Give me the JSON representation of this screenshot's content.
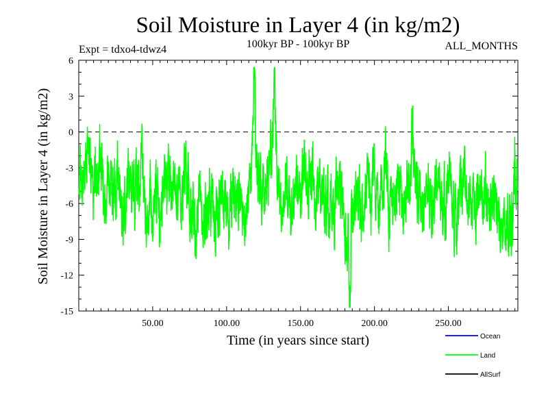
{
  "chart_data": {
    "type": "line",
    "title": "Soil Moisture in Layer 4 (in kg/m2)",
    "subtitle_left": "Expt = tdxo4-tdwz4",
    "subtitle_center": "100kyr BP - 100kyr BP",
    "subtitle_right": "ALL_MONTHS",
    "xlabel": "Time (in years since start)",
    "ylabel": "Soil Moisture in Layer 4 (in kg/m2)",
    "xlim": [
      0,
      297
    ],
    "ylim": [
      -15,
      6
    ],
    "xticks": [
      50,
      100,
      150,
      200,
      250
    ],
    "xtick_labels": [
      "50.00",
      "100.00",
      "150.00",
      "200.00",
      "250.00"
    ],
    "yticks": [
      6,
      3,
      0,
      -3,
      -6,
      -9,
      -12,
      -15
    ],
    "ytick_labels": [
      "6",
      "3",
      "0",
      "-3",
      "-6",
      "-9",
      "-12",
      "-15"
    ],
    "zero_line": "dashed",
    "grid": false,
    "legend_position": "bottom-right",
    "legend": [
      {
        "name": "Ocean",
        "color": "#0000ff"
      },
      {
        "name": "Land",
        "color": "#00ff00"
      },
      {
        "name": "AllSurf",
        "color": "#000000"
      }
    ],
    "series": [
      {
        "name": "Land",
        "color": "#00ff00",
        "x_start": 0,
        "x_step": 0.0833,
        "anchor_x": [
          0,
          2,
          5,
          7,
          9,
          12,
          14,
          17,
          19,
          21,
          24,
          27,
          30,
          32,
          35,
          38,
          40,
          43,
          45,
          48,
          50,
          53,
          55,
          57,
          60,
          62,
          65,
          68,
          70,
          72,
          75,
          78,
          80,
          82,
          85,
          88,
          90,
          92,
          95,
          98,
          100,
          103,
          105,
          108,
          110,
          113,
          115,
          117,
          118.5,
          120,
          122,
          124,
          126,
          129,
          131,
          132.5,
          134,
          137,
          140,
          142,
          145,
          147,
          150,
          153,
          155,
          158,
          160,
          163,
          165,
          168,
          170,
          173,
          175,
          178,
          180,
          182,
          183,
          185,
          188,
          190,
          193,
          195,
          197,
          200,
          202,
          205,
          208,
          210,
          213,
          215,
          218,
          220,
          223,
          225,
          226,
          228,
          230,
          233,
          235,
          238,
          240,
          243,
          245,
          248,
          250,
          253,
          254,
          256,
          258,
          260,
          263,
          265,
          268,
          270,
          273,
          275,
          278,
          280,
          283,
          285,
          288,
          290,
          292,
          294,
          295,
          297
        ],
        "anchor_y": [
          -5.0,
          -3.0,
          -3.5,
          -2.0,
          -4.5,
          -5.5,
          -3.0,
          -5.0,
          -6.0,
          -4.5,
          -5.5,
          -3.5,
          -6.5,
          -5.0,
          -4.0,
          -6.0,
          -5.0,
          -3.0,
          -6.5,
          -4.5,
          -5.5,
          -4.0,
          -7.5,
          -5.0,
          -3.5,
          -6.0,
          -4.5,
          -5.0,
          -6.5,
          -3.5,
          -5.0,
          -7.0,
          -6.5,
          -5.5,
          -7.0,
          -6.0,
          -5.5,
          -7.5,
          -6.5,
          -5.0,
          -7.0,
          -6.0,
          -5.5,
          -5.0,
          -7.0,
          -6.0,
          -4.0,
          -3.0,
          1.5,
          -2.0,
          -4.5,
          -4.0,
          -5.5,
          -3.0,
          -2.0,
          1.0,
          -3.0,
          -5.5,
          -4.5,
          -6.5,
          -5.0,
          -5.5,
          -6.0,
          -4.0,
          -5.5,
          -3.5,
          -6.0,
          -5.0,
          -6.5,
          -5.5,
          -7.0,
          -6.0,
          -4.5,
          -6.0,
          -8.0,
          -9.0,
          -10.0,
          -6.5,
          -4.5,
          -5.5,
          -6.5,
          -4.0,
          -5.5,
          -3.0,
          -5.0,
          -6.0,
          -3.5,
          -5.5,
          -4.5,
          -5.0,
          -3.5,
          -6.0,
          -5.0,
          -3.0,
          -1.0,
          -4.0,
          -5.5,
          -6.5,
          -4.5,
          -6.0,
          -5.0,
          -3.5,
          -5.5,
          -6.0,
          -4.5,
          -6.5,
          -8.5,
          -6.0,
          -5.0,
          -4.0,
          -6.0,
          -5.0,
          -6.5,
          -4.0,
          -5.5,
          -5.0,
          -6.0,
          -4.5,
          -6.5,
          -7.5,
          -9.0,
          -8.0,
          -10.0,
          -6.0,
          -3.0,
          -4.0
        ],
        "sample_count": 3564,
        "observed_max": 5.4,
        "observed_min": -14.7
      }
    ]
  }
}
